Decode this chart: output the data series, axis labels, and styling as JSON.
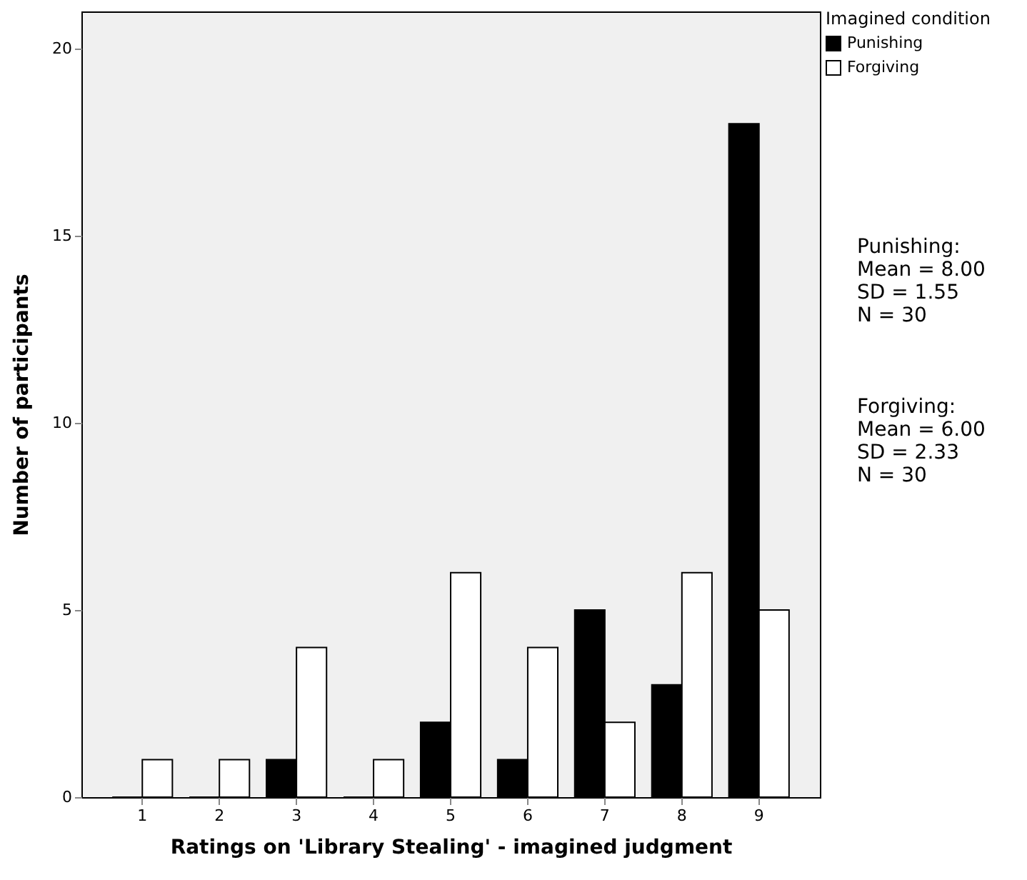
{
  "chart_data": {
    "type": "bar",
    "xlabel": "Ratings on 'Library Stealing' - imagined judgment",
    "ylabel": "Number of participants",
    "legend_title": "Imagined condition",
    "categories": [
      "1",
      "2",
      "3",
      "4",
      "5",
      "6",
      "7",
      "8",
      "9"
    ],
    "series": [
      {
        "name": "Punishing",
        "color": "#000000",
        "values": [
          0,
          0,
          1,
          0,
          2,
          1,
          5,
          3,
          18
        ]
      },
      {
        "name": "Forgiving",
        "color": "#ffffff",
        "values": [
          1,
          1,
          4,
          1,
          6,
          4,
          2,
          6,
          5
        ]
      }
    ],
    "ylim": [
      0,
      21
    ],
    "yticks": [
      0,
      5,
      10,
      15,
      20
    ],
    "grid": false,
    "legend": "top right",
    "annotations": [
      "Punishing:\nMean = 8.00\nSD = 1.55\nN = 30",
      "Forgiving:\nMean = 6.00\nSD = 2.33\nN = 30"
    ]
  }
}
